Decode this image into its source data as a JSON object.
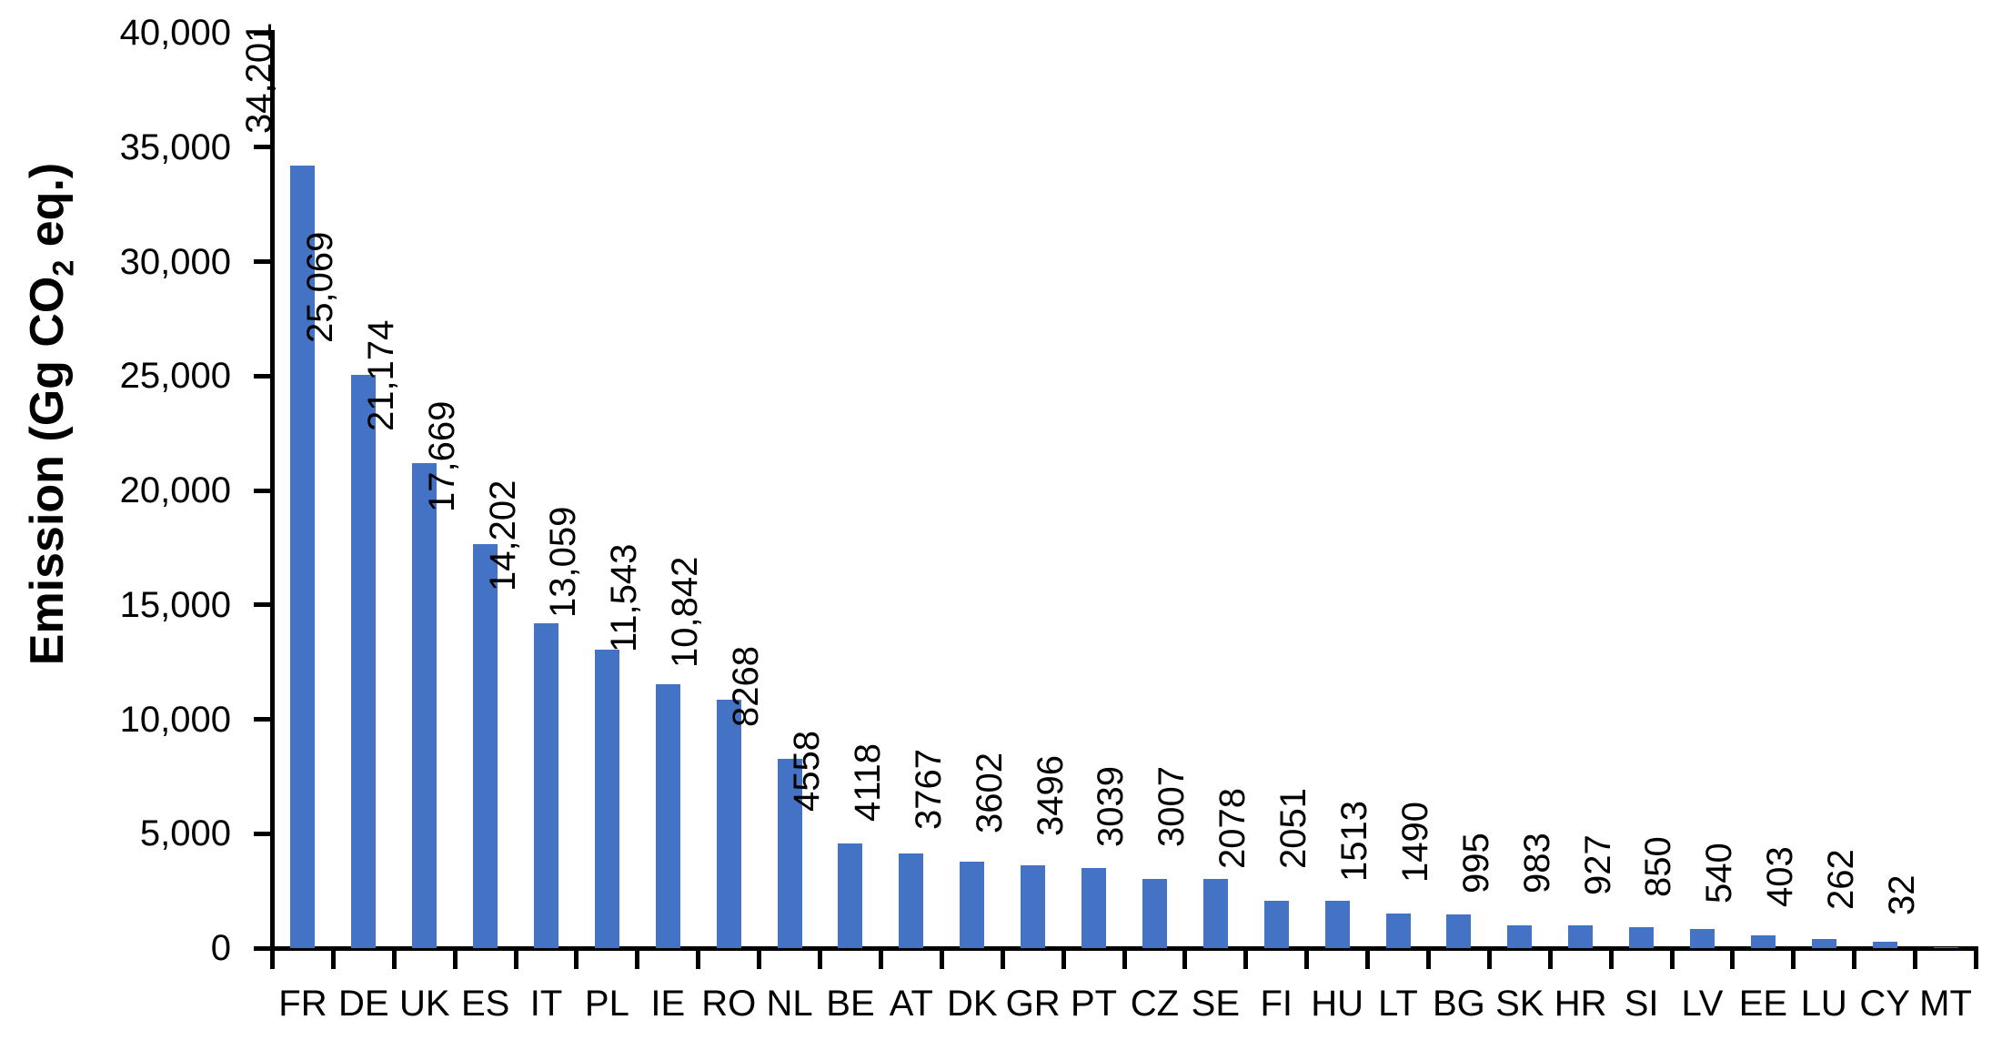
{
  "chart_data": {
    "type": "bar",
    "title": "",
    "xlabel": "",
    "ylabel": "Emission (Gg CO2 eq.)",
    "ylabel_parts": {
      "pre": "Emission (Gg CO",
      "sub": "2",
      "post": " eq.)"
    },
    "ylim": [
      0,
      40000
    ],
    "grid": false,
    "legend": false,
    "bar_color": "#4472C4",
    "axis_color": "#000000",
    "text_color": "#000000",
    "y_ticks": [
      {
        "value": 0,
        "label": "0"
      },
      {
        "value": 5000,
        "label": "5,000"
      },
      {
        "value": 10000,
        "label": "10,000"
      },
      {
        "value": 15000,
        "label": "15,000"
      },
      {
        "value": 20000,
        "label": "20,000"
      },
      {
        "value": 25000,
        "label": "25,000"
      },
      {
        "value": 30000,
        "label": "30,000"
      },
      {
        "value": 35000,
        "label": "35,000"
      },
      {
        "value": 40000,
        "label": "40,000"
      }
    ],
    "categories": [
      "FR",
      "DE",
      "UK",
      "ES",
      "IT",
      "PL",
      "IE",
      "RO",
      "NL",
      "BE",
      "AT",
      "DK",
      "GR",
      "PT",
      "CZ",
      "SE",
      "FI",
      "HU",
      "LT",
      "BG",
      "SK",
      "HR",
      "SI",
      "LV",
      "EE",
      "LU",
      "CY",
      "MT"
    ],
    "values": [
      34201,
      25069,
      21174,
      17669,
      14202,
      13059,
      11543,
      10842,
      8268,
      4558,
      4118,
      3767,
      3602,
      3496,
      3039,
      3007,
      2078,
      2051,
      1513,
      1490,
      995,
      983,
      927,
      850,
      540,
      403,
      262,
      32
    ],
    "value_labels": [
      "34,201",
      "25,069",
      "21,174",
      "17,669",
      "14,202",
      "13,059",
      "11,543",
      "10,842",
      "8268",
      "4558",
      "4118",
      "3767",
      "3602",
      "3496",
      "3039",
      "3007",
      "2078",
      "2051",
      "1513",
      "1490",
      "995",
      "983",
      "927",
      "850",
      "540",
      "403",
      "262",
      "32"
    ]
  }
}
